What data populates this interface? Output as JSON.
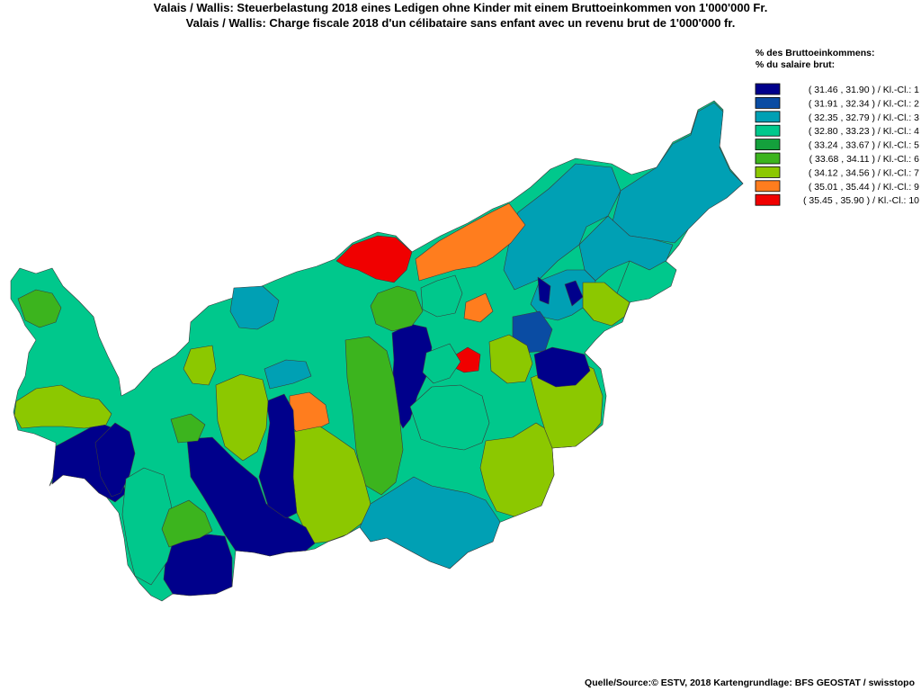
{
  "title": {
    "line1": "Valais / Wallis: Steuerbelastung 2018 eines Ledigen ohne Kinder mit einem Bruttoeinkommen von 1'000'000 Fr.",
    "line2": "Valais / Wallis: Charge fiscale 2018 d'un célibataire sans enfant avec un revenu brut de 1'000'000 fr."
  },
  "legend": {
    "heading_line1": "% des Bruttoeinkommens:",
    "heading_line2": "% du salaire brut:",
    "classes": [
      {
        "label": "( 31.46 , 31.90 ) / Kl.-Cl.: 1",
        "color": "#00008b"
      },
      {
        "label": "( 31.91 , 32.34 ) / Kl.-Cl.: 2",
        "color": "#0a4ca3"
      },
      {
        "label": "( 32.35 , 32.79 ) / Kl.-Cl.: 3",
        "color": "#00a0b4"
      },
      {
        "label": "( 32.80 , 33.23 ) / Kl.-Cl.: 4",
        "color": "#00c88c"
      },
      {
        "label": "( 33.24 , 33.67 ) / Kl.-Cl.: 5",
        "color": "#14a03c"
      },
      {
        "label": "( 33.68 , 34.11 ) / Kl.-Cl.: 6",
        "color": "#3cb41e"
      },
      {
        "label": "( 34.12 , 34.56 ) / Kl.-Cl.: 7",
        "color": "#8cc800"
      },
      {
        "label": "( 35.01 , 35.44 ) / Kl.-Cl.: 9",
        "color": "#ff7d1e"
      },
      {
        "label": "( 35.45 , 35.90 ) / Kl.-Cl.: 10",
        "color": "#f00000"
      }
    ]
  },
  "map": {
    "base_color": "#00c88c",
    "regions": [
      {
        "cls": 3
      },
      {
        "cls": 3
      },
      {
        "cls": 3
      },
      {
        "cls": 3
      },
      {
        "cls": 2
      },
      {
        "cls": 4
      },
      {
        "cls": 7
      },
      {
        "cls": 1
      },
      {
        "cls": 9
      },
      {
        "cls": 10
      },
      {
        "cls": 9
      },
      {
        "cls": 10
      },
      {
        "cls": 1
      },
      {
        "cls": 6
      },
      {
        "cls": 9
      },
      {
        "cls": 7
      },
      {
        "cls": 1
      },
      {
        "cls": 1
      },
      {
        "cls": 3
      },
      {
        "cls": 4
      },
      {
        "cls": 7
      },
      {
        "cls": 7
      },
      {
        "cls": 1
      },
      {
        "cls": 4
      },
      {
        "cls": 6
      },
      {
        "cls": 1
      },
      {
        "cls": 1
      },
      {
        "cls": 1
      },
      {
        "cls": 7
      },
      {
        "cls": 6
      },
      {
        "cls": 4
      },
      {
        "cls": 6
      },
      {
        "cls": 7
      },
      {
        "cls": 7
      },
      {
        "cls": 3
      },
      {
        "cls": 3
      },
      {
        "cls": 4
      },
      {
        "cls": 7
      },
      {
        "cls": 6
      },
      {
        "cls": 1
      }
    ]
  },
  "source": "Quelle/Source:© ESTV, 2018 Kartengrundlage: BFS GEOSTAT / swisstopo"
}
